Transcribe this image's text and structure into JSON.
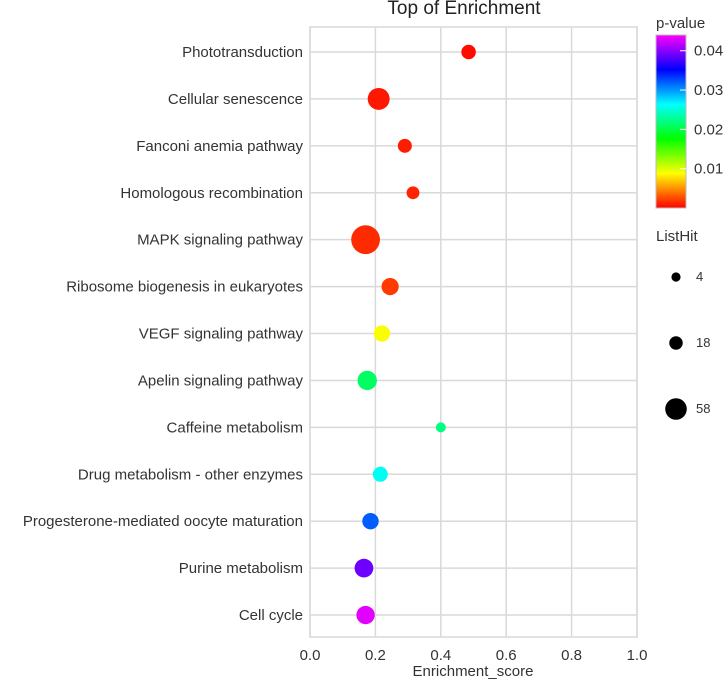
{
  "chart_data": {
    "type": "scatter",
    "title": "Top  of  Enrichment",
    "xlabel": "Enrichment_score",
    "ylabel": "",
    "xlim": [
      0.0,
      1.0
    ],
    "xticks": [
      "0.0",
      "0.2",
      "0.4",
      "0.6",
      "0.8",
      "1.0"
    ],
    "grid": true,
    "categories": [
      "Phototransduction",
      "Cellular senescence",
      "Fanconi anemia pathway",
      "Homologous recombination",
      "MAPK signaling pathway",
      "Ribosome biogenesis in eukaryotes",
      "VEGF signaling pathway",
      "Apelin signaling pathway",
      "Caffeine metabolism",
      "Drug metabolism - other enzymes",
      "Progesterone-mediated oocyte maturation",
      "Purine metabolism",
      "Cell cycle"
    ],
    "points": [
      {
        "term": "Phototransduction",
        "x": 0.485,
        "pvalue": 0.0004,
        "listhit": 10
      },
      {
        "term": "Cellular senescence",
        "x": 0.21,
        "pvalue": 0.0008,
        "listhit": 30
      },
      {
        "term": "Fanconi anemia pathway",
        "x": 0.29,
        "pvalue": 0.001,
        "listhit": 9
      },
      {
        "term": "Homologous recombination",
        "x": 0.315,
        "pvalue": 0.0012,
        "listhit": 7
      },
      {
        "term": "MAPK signaling pathway",
        "x": 0.17,
        "pvalue": 0.0015,
        "listhit": 58
      },
      {
        "term": "Ribosome biogenesis in eukaryotes",
        "x": 0.245,
        "pvalue": 0.002,
        "listhit": 16
      },
      {
        "term": "VEGF signaling pathway",
        "x": 0.22,
        "pvalue": 0.009,
        "listhit": 14
      },
      {
        "term": "Apelin signaling pathway",
        "x": 0.175,
        "pvalue": 0.021,
        "listhit": 22
      },
      {
        "term": "Caffeine metabolism",
        "x": 0.4,
        "pvalue": 0.022,
        "listhit": 3
      },
      {
        "term": "Drug metabolism - other enzymes",
        "x": 0.215,
        "pvalue": 0.026,
        "listhit": 11
      },
      {
        "term": "Progesterone-mediated oocyte maturation",
        "x": 0.185,
        "pvalue": 0.032,
        "listhit": 14
      },
      {
        "term": "Purine metabolism",
        "x": 0.165,
        "pvalue": 0.039,
        "listhit": 20
      },
      {
        "term": "Cell cycle",
        "x": 0.17,
        "pvalue": 0.043,
        "listhit": 19
      }
    ],
    "color_legend": {
      "title": "p-value",
      "ticks": [
        "0.01",
        "0.02",
        "0.03",
        "0.04"
      ],
      "range": [
        0.0,
        0.044
      ],
      "colors": [
        "#ff0000",
        "#ffff00",
        "#00ff00",
        "#00ffff",
        "#0000ff",
        "#ff00ff"
      ]
    },
    "size_legend": {
      "title": "ListHit",
      "values": [
        4,
        18,
        58
      ]
    }
  }
}
